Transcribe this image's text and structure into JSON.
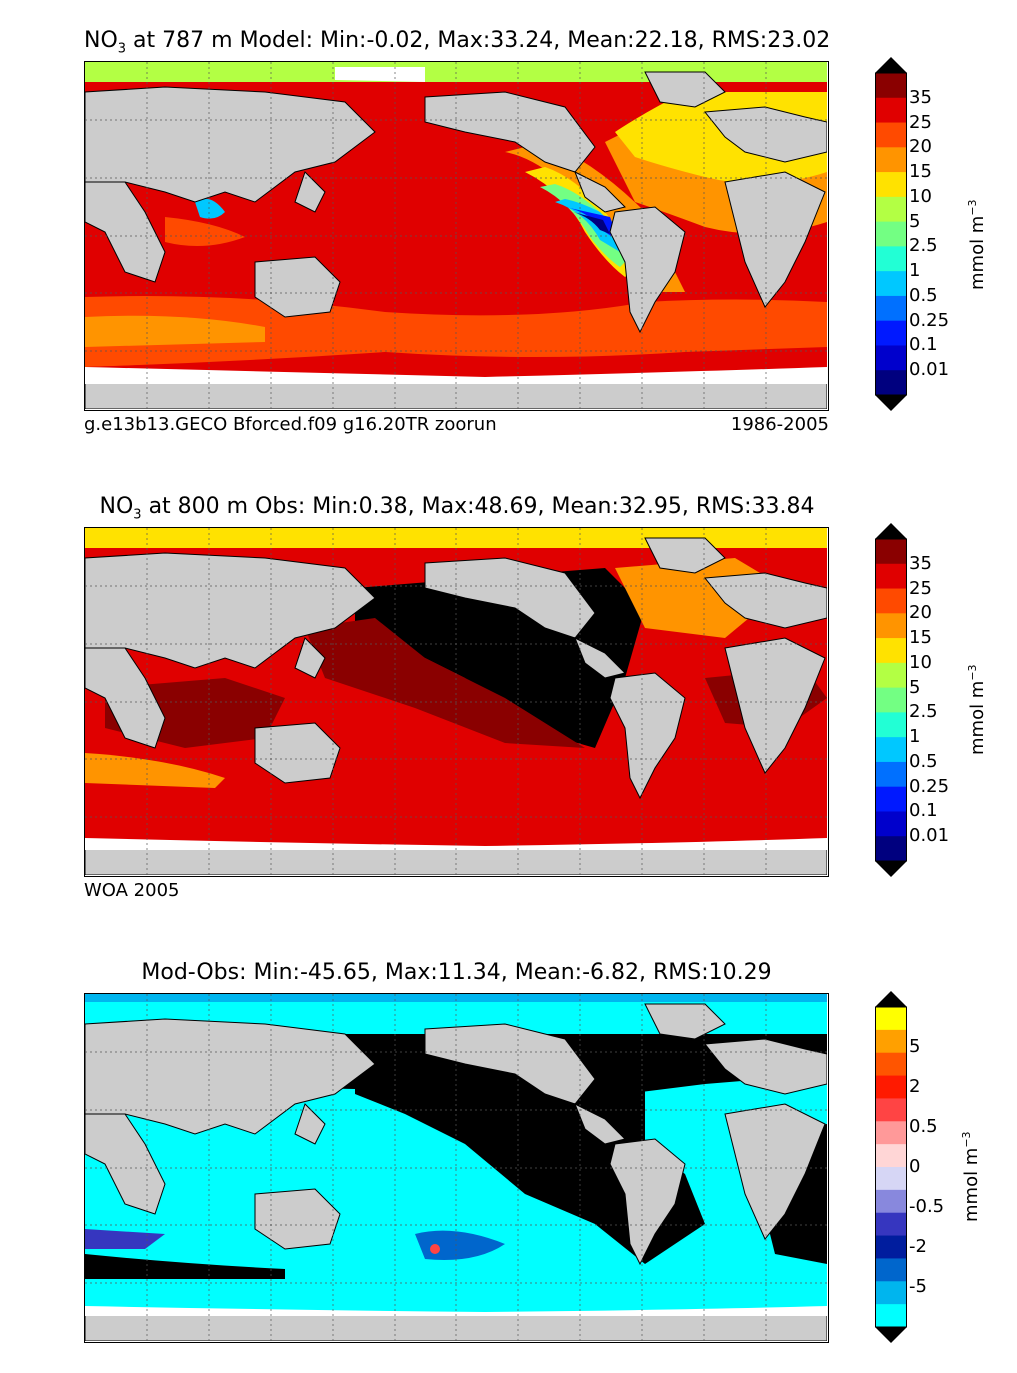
{
  "colors": {
    "land": "#cccccc",
    "ice": "#ffffff",
    "grid": "#555555",
    "conc_levels": [
      "#00007f",
      "#0000cc",
      "#0019ff",
      "#0070ff",
      "#00c8ff",
      "#22ffd5",
      "#73ff83",
      "#b3ff44",
      "#ffe200",
      "#ff9400",
      "#ff4a00",
      "#e00000",
      "#8a0000"
    ],
    "diff_levels": [
      "#00ffff",
      "#00b5ee",
      "#0066cc",
      "#001d9e",
      "#3636bf",
      "#8888dd",
      "#d6d6f5",
      "#ffd6d6",
      "#ff9999",
      "#ff4444",
      "#ff1a00",
      "#ff5500",
      "#ffa000",
      "#ffff00"
    ]
  },
  "chart_data": [
    {
      "type": "heatmap",
      "title_prefix": "NO",
      "title_sub": "3",
      "title": " at 787 m Model: Min:-0.02, Max:33.24, Mean:22.18, RMS:23.02",
      "caption_left": "g.e13b13.GECO Bforced.f09 g16.20TR zoorun",
      "caption_right": "1986-2005",
      "colorbar_ticks": [
        "35",
        "25",
        "20",
        "15",
        "10",
        "5",
        "2.5",
        "1",
        "0.5",
        "0.25",
        "0.1",
        "0.01"
      ],
      "colorbar_label": "mmol m",
      "colorbar_label_sup": "−3",
      "stats": {
        "min": -0.02,
        "max": 33.24,
        "mean": 22.18,
        "rms": 23.02
      }
    },
    {
      "type": "heatmap",
      "title_prefix": "NO",
      "title_sub": "3",
      "title": " at 800 m Obs: Min:0.38, Max:48.69, Mean:32.95, RMS:33.84",
      "caption_left": "WOA 2005",
      "caption_right": "",
      "colorbar_ticks": [
        "35",
        "25",
        "20",
        "15",
        "10",
        "5",
        "2.5",
        "1",
        "0.5",
        "0.25",
        "0.1",
        "0.01"
      ],
      "colorbar_label": "mmol m",
      "colorbar_label_sup": "−3",
      "stats": {
        "min": 0.38,
        "max": 48.69,
        "mean": 32.95,
        "rms": 33.84
      }
    },
    {
      "type": "heatmap",
      "title_prefix": "",
      "title_sub": "",
      "title": "Mod-Obs: Min:-45.65, Max:11.34, Mean:-6.82, RMS:10.29",
      "caption_left": "",
      "caption_right": "",
      "colorbar_ticks": [
        "5",
        "2",
        "0.5",
        "0",
        "-0.5",
        "-2",
        "-5"
      ],
      "colorbar_label": "mmol m",
      "colorbar_label_sup": "−3",
      "stats": {
        "min": -45.65,
        "max": 11.34,
        "mean": -6.82,
        "rms": 10.29
      }
    }
  ]
}
